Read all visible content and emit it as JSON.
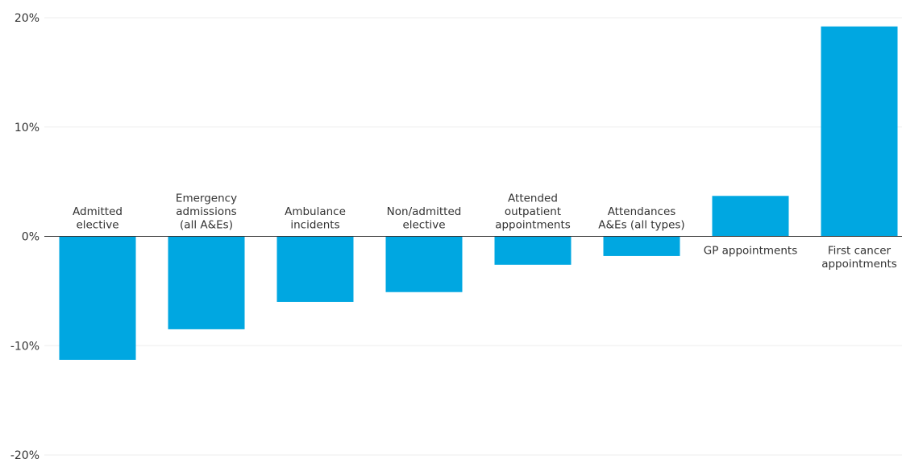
{
  "chart_data": {
    "type": "bar",
    "categories": [
      [
        "Admitted",
        "elective"
      ],
      [
        "Emergency",
        "admissions",
        "(all A&Es)"
      ],
      [
        "Ambulance",
        "incidents"
      ],
      [
        "Non/admitted",
        "elective"
      ],
      [
        "Attended",
        "outpatient",
        "appointments"
      ],
      [
        "Attendances",
        "A&Es (all types)"
      ],
      [
        "GP appointments"
      ],
      [
        "First cancer",
        "appointments"
      ]
    ],
    "values": [
      -11.3,
      -8.5,
      -6.0,
      -5.1,
      -2.6,
      -1.8,
      3.7,
      19.2
    ],
    "y_ticks": [
      {
        "value": 20,
        "label": "20%"
      },
      {
        "value": 10,
        "label": "10%"
      },
      {
        "value": 0,
        "label": "0%"
      },
      {
        "value": -10,
        "label": "-10%"
      },
      {
        "value": -20,
        "label": "-20%"
      }
    ],
    "ylim": [
      -20,
      20
    ],
    "title": "",
    "xlabel": "",
    "ylabel": "",
    "grid": true,
    "bar_color": "#00a7e1",
    "grid_color": "#eeeeee",
    "zero_line_color": "#333333"
  }
}
